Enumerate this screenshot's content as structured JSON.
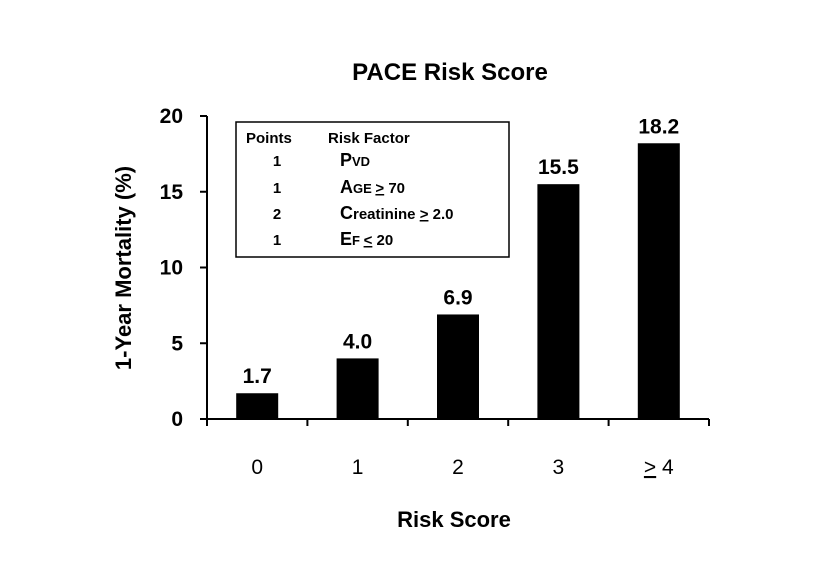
{
  "chart_data": {
    "type": "bar",
    "title": "PACE Risk Score",
    "xlabel": "Risk Score",
    "ylabel": "1-Year Mortality (%)",
    "categories": [
      "0",
      "1",
      "2",
      "3",
      "> 4"
    ],
    "values": [
      1.7,
      4.0,
      6.9,
      15.5,
      18.2
    ],
    "data_labels": [
      "1.7",
      "4.0",
      "6.9",
      "15.5",
      "18.2"
    ],
    "ylim": [
      0,
      20
    ],
    "yticks": [
      0,
      5,
      10,
      15,
      20
    ],
    "grid": false,
    "bar_color": "#000000",
    "legend_table": {
      "headers": [
        "Points",
        "Risk Factor"
      ],
      "rows": [
        {
          "points": "1",
          "factor_initial": "P",
          "factor_rest": "VD",
          "operator": "",
          "threshold": ""
        },
        {
          "points": "1",
          "factor_initial": "A",
          "factor_rest": "GE ",
          "operator": ">",
          "threshold": " 70"
        },
        {
          "points": "2",
          "factor_initial": "C",
          "factor_rest": "reatinine ",
          "operator": ">",
          "threshold": " 2.0"
        },
        {
          "points": "1",
          "factor_initial": "E",
          "factor_rest": "F ",
          "operator": "<",
          "threshold": " 20"
        }
      ]
    }
  }
}
